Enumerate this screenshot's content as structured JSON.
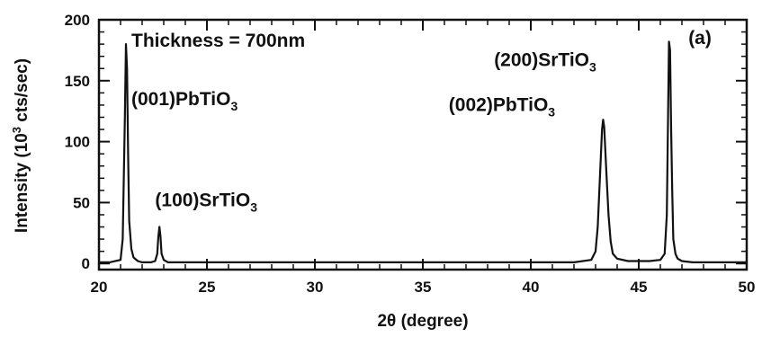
{
  "chart_data": {
    "type": "line",
    "xlabel": "2θ (degree)",
    "ylabel": "Intensity (10",
    "ylabel_sup": "3",
    "ylabel_tail": " cts/sec)",
    "xlim": [
      20,
      50
    ],
    "ylim": [
      -5,
      200
    ],
    "x_ticks": [
      20,
      25,
      30,
      35,
      40,
      45,
      50
    ],
    "y_ticks": [
      0,
      50,
      100,
      150,
      200
    ],
    "x_tick_labels": [
      "20",
      "25",
      "30",
      "35",
      "40",
      "45",
      "50"
    ],
    "y_tick_labels": [
      "0",
      "50",
      "100",
      "150",
      "200"
    ],
    "grid": false,
    "series": [
      {
        "x": [
          20.0,
          20.5,
          21.0,
          21.1,
          21.2,
          21.25,
          21.3,
          21.35,
          21.4,
          21.5,
          21.6,
          21.8,
          22.0,
          22.4,
          22.6,
          22.7,
          22.75,
          22.8,
          22.85,
          22.9,
          23.0,
          23.2,
          25.0,
          28.0,
          30.0,
          33.0,
          35.0,
          38.0,
          40.0,
          42.0,
          42.8,
          43.0,
          43.1,
          43.2,
          43.3,
          43.35,
          43.4,
          43.5,
          43.6,
          43.7,
          43.8,
          44.0,
          44.5,
          45.5,
          46.0,
          46.2,
          46.3,
          46.35,
          46.4,
          46.45,
          46.5,
          46.55,
          46.6,
          46.7,
          46.8,
          47.0,
          47.5,
          48.0,
          49.0,
          50.0
        ],
        "y": [
          1,
          1,
          3,
          20,
          120,
          180,
          160,
          90,
          35,
          12,
          5,
          2,
          1,
          1,
          2,
          8,
          22,
          30,
          22,
          8,
          3,
          1,
          1,
          1,
          1,
          1,
          1,
          1,
          1,
          1,
          3,
          10,
          30,
          70,
          110,
          118,
          112,
          75,
          40,
          18,
          8,
          4,
          2,
          2,
          3,
          8,
          40,
          110,
          182,
          175,
          110,
          60,
          20,
          8,
          4,
          2,
          1,
          1,
          1,
          1
        ]
      }
    ],
    "annotations": [
      {
        "text": "Thickness = 700nm",
        "x": 21.5,
        "y": 178
      },
      {
        "text": "(001)PbTiO",
        "sub": "3",
        "x": 21.5,
        "y": 130
      },
      {
        "text": "(100)SrTiO",
        "sub": "3",
        "x": 22.6,
        "y": 47
      },
      {
        "text": "(002)PbTiO",
        "sub": "3",
        "x": 36.2,
        "y": 125
      },
      {
        "text": "(200)SrTiO",
        "sub": "3",
        "x": 38.3,
        "y": 162
      },
      {
        "text": "(a)",
        "x": 47.3,
        "y": 180
      }
    ]
  }
}
